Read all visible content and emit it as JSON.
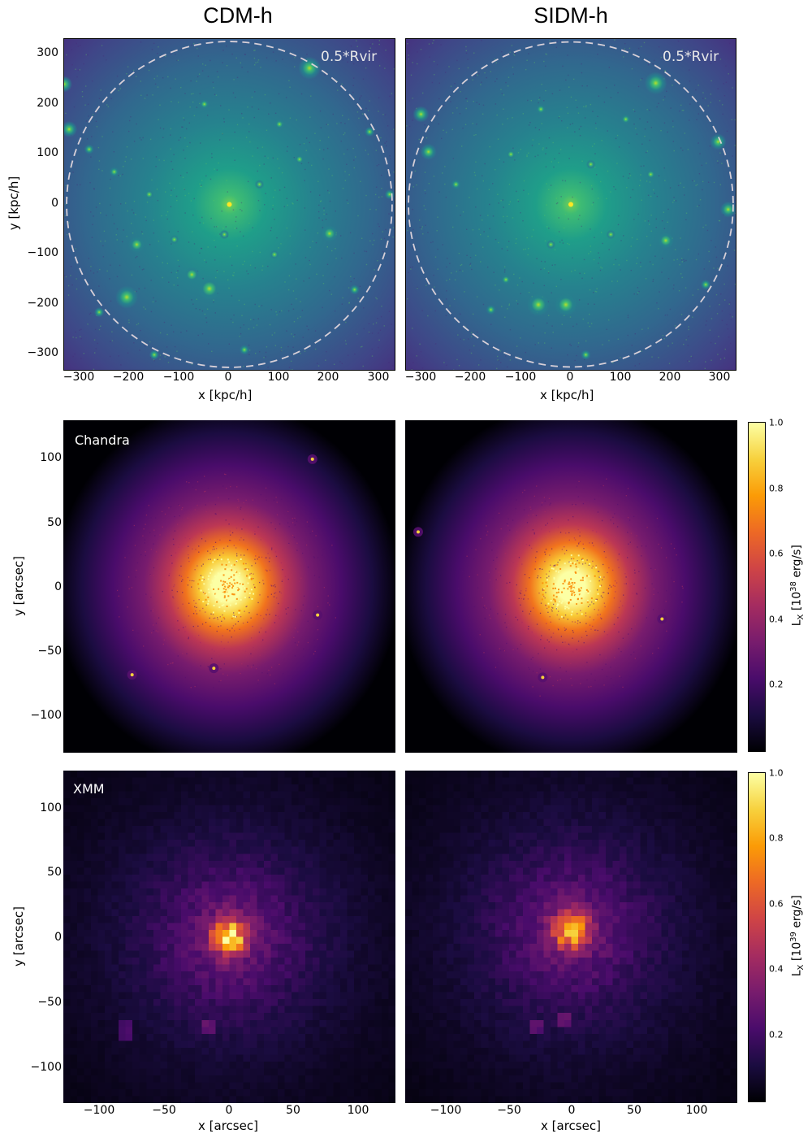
{
  "columns": [
    "CDM-h",
    "SIDM-h"
  ],
  "circle_label": "0.5*Rvir",
  "colors": {
    "dm_background": "#46307e",
    "dm_center": "#3fbc73",
    "xray_background": "#000004",
    "xray_peak": "#fcffa4"
  },
  "colormap_dm": "viridis",
  "colormap_xray": "inferno",
  "chart_data": [
    {
      "type": "heatmap",
      "title": "CDM-h",
      "row": "dark-matter",
      "xlabel": "x [kpc/h]",
      "ylabel": "y [kpc/h]",
      "xlim": [
        -330,
        330
      ],
      "ylim": [
        -330,
        330
      ],
      "xticks": [
        "−300",
        "−200",
        "−100",
        "0",
        "100",
        "200",
        "300"
      ],
      "yticks": [
        "300",
        "200",
        "100",
        "0",
        "−100",
        "−200",
        "−300"
      ],
      "annotation": "0.5*Rvir",
      "circle_radius_kpc": 325,
      "subhalos": [
        [
          160,
          272
        ],
        [
          -205,
          -185
        ],
        [
          -40,
          -168
        ],
        [
          -75,
          -140
        ],
        [
          200,
          -58
        ],
        [
          -185,
          -80
        ],
        [
          -330,
          240
        ],
        [
          -320,
          150
        ],
        [
          -280,
          110
        ],
        [
          280,
          145
        ],
        [
          320,
          20
        ],
        [
          -50,
          200
        ],
        [
          100,
          160
        ],
        [
          -110,
          -70
        ],
        [
          30,
          -290
        ],
        [
          -150,
          -300
        ],
        [
          -260,
          -215
        ],
        [
          140,
          90
        ],
        [
          -10,
          -60
        ],
        [
          60,
          40
        ],
        [
          250,
          -170
        ],
        [
          -160,
          20
        ],
        [
          90,
          -100
        ],
        [
          -230,
          65
        ]
      ]
    },
    {
      "type": "heatmap",
      "title": "SIDM-h",
      "row": "dark-matter",
      "xlabel": "x [kpc/h]",
      "xlim": [
        -330,
        330
      ],
      "ylim": [
        -330,
        330
      ],
      "xticks": [
        "−300",
        "−200",
        "−100",
        "0",
        "100",
        "200",
        "300"
      ],
      "annotation": "0.5*Rvir",
      "circle_radius_kpc": 325,
      "subhalos": [
        [
          170,
          242
        ],
        [
          -65,
          -200
        ],
        [
          -10,
          -200
        ],
        [
          190,
          -72
        ],
        [
          -285,
          105
        ],
        [
          -300,
          180
        ],
        [
          295,
          125
        ],
        [
          315,
          -10
        ],
        [
          270,
          -160
        ],
        [
          -130,
          -150
        ],
        [
          30,
          -300
        ],
        [
          -60,
          190
        ],
        [
          110,
          170
        ],
        [
          -160,
          -210
        ],
        [
          -230,
          40
        ],
        [
          80,
          -60
        ],
        [
          -40,
          -80
        ],
        [
          160,
          60
        ],
        [
          -120,
          100
        ],
        [
          40,
          80
        ]
      ]
    },
    {
      "type": "heatmap",
      "title": "Chandra",
      "row": "chandra",
      "ylabel": "y [arcsec]",
      "xlim": [
        -128,
        128
      ],
      "ylim": [
        -128,
        128
      ],
      "yticks": [
        "100",
        "50",
        "0",
        "−50",
        "−100"
      ],
      "sources": [
        [
          -75,
          -68
        ],
        [
          -12,
          -63
        ],
        [
          68,
          -22
        ],
        [
          64,
          98
        ]
      ],
      "peak_offset": [
        -2,
        0
      ]
    },
    {
      "type": "heatmap",
      "row": "chandra",
      "xlim": [
        -128,
        128
      ],
      "ylim": [
        -128,
        128
      ],
      "sources": [
        [
          70,
          -25
        ],
        [
          -22,
          -70
        ],
        [
          -118,
          42
        ]
      ],
      "peak_offset": [
        0,
        0
      ],
      "colorbar": {
        "label": "L",
        "label_sub": "X",
        "label_rest": " [10",
        "label_exp": "38",
        "label_unit": " erg/s]",
        "ticks": [
          "1.0",
          "0.8",
          "0.6",
          "0.4",
          "0.2"
        ],
        "range": [
          0,
          1
        ]
      }
    },
    {
      "type": "heatmap",
      "title": "XMM",
      "row": "xmm",
      "xlabel": "x [arcsec]",
      "ylabel": "y [arcsec]",
      "xlim": [
        -128,
        128
      ],
      "ylim": [
        -128,
        128
      ],
      "xticks": [
        "−100",
        "−50",
        "0",
        "50",
        "100"
      ],
      "yticks": [
        "100",
        "50",
        "0",
        "−50",
        "−100"
      ],
      "peak_offset": [
        0,
        0
      ],
      "sources": [
        [
          -78,
          -72
        ],
        [
          -15,
          -68
        ]
      ]
    },
    {
      "type": "heatmap",
      "row": "xmm",
      "xlabel": "x [arcsec]",
      "xlim": [
        -128,
        128
      ],
      "ylim": [
        -128,
        128
      ],
      "xticks": [
        "−100",
        "−50",
        "0",
        "50",
        "100"
      ],
      "peak_offset": [
        0,
        5
      ],
      "sources": [
        [
          -25,
          -70
        ],
        [
          -5,
          -66
        ]
      ],
      "colorbar": {
        "label": "L",
        "label_sub": "X",
        "label_rest": " [10",
        "label_exp": "39",
        "label_unit": " erg/s]",
        "ticks": [
          "1.0",
          "0.8",
          "0.6",
          "0.4",
          "0.2"
        ],
        "range": [
          0,
          1
        ]
      }
    }
  ]
}
